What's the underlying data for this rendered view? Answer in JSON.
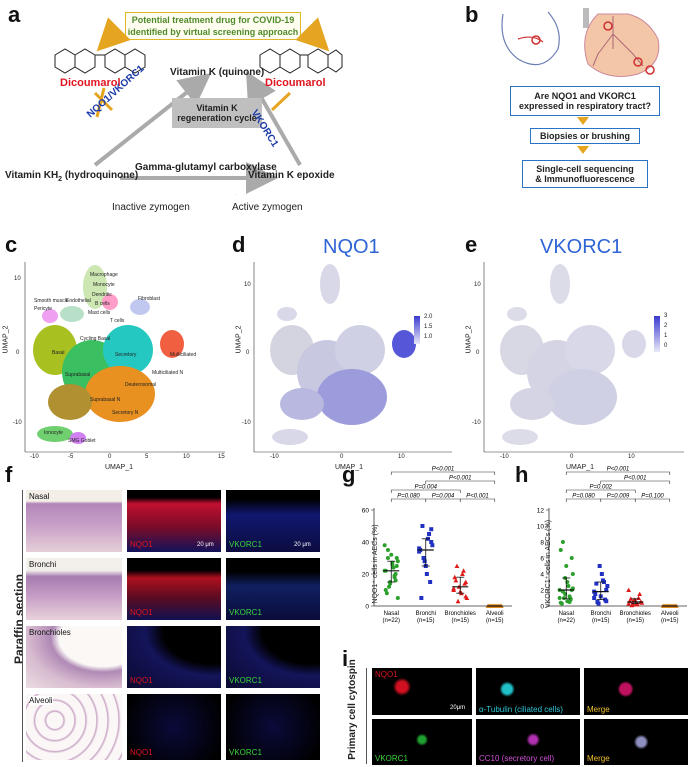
{
  "panel_labels": {
    "a": "a",
    "b": "b",
    "c": "c",
    "d": "d",
    "e": "e",
    "f": "f",
    "g": "g",
    "h": "h",
    "i": "i"
  },
  "panel_a": {
    "banner_line1": "Potential treatment drug for COVID-19",
    "banner_line2": "identified by virtual screening approach",
    "dicoumarol_left": "Dicoumarol",
    "dicoumarol_right": "Dicoumarol",
    "vk_quinone": "Vitamin K (quinone)",
    "cycle_line1": "Vitamin K",
    "cycle_line2": "regeneration cycle",
    "nqo1_vkorc1": "NQO1/VKORC1",
    "vkorc1": "VKORC1",
    "vk_hydroquinone_a": "Vitamin KH",
    "vk_hydroquinone_sub": "2",
    "vk_hydroquinone_b": " (hydroquinone)",
    "carboxylase": "Gamma-glutamyl carboxylase",
    "vk_epoxide": "Vitamin K epoxide",
    "inactive": "Inactive zymogen",
    "active": "Active zymogen"
  },
  "panel_b": {
    "q1": "Are NQO1 and VKORC1",
    "q2": "expressed in respiratory tract?",
    "step2": "Biopsies or brushing",
    "step3a": "Single-cell sequencing",
    "step3b": "& Immunofluorescence"
  },
  "panel_c": {
    "xlabel": "UMAP_1",
    "ylabel": "UMAP_2",
    "xticks": [
      "-10",
      "-5",
      "0",
      "5",
      "10",
      "15"
    ],
    "yticks": [
      "10",
      "0",
      "-10"
    ],
    "clusters": [
      "Macrophage",
      "Monocyte",
      "Dendritic",
      "B cells",
      "Fibroblast",
      "Smooth muscle",
      "Endothelial",
      "Pericyte",
      "Mast cells",
      "T cells",
      "Basal",
      "Cycling Basal",
      "Secretory",
      "Multiciliated",
      "Suprabasal",
      "Deuterosomal",
      "Multiciliated N",
      "Suprabasal N",
      "Secretory N",
      "Ionocyte",
      "SMG Goblet"
    ]
  },
  "panel_d": {
    "title": "NQO1",
    "xlabel": "UMAP_1",
    "ylabel": "UMAP_2",
    "xticks": [
      "-10",
      "0",
      "10"
    ],
    "yticks": [
      "10",
      "0",
      "-10"
    ],
    "scale": [
      "2.0",
      "1.5",
      "1.0"
    ]
  },
  "panel_e": {
    "title": "VKORC1",
    "xlabel": "UMAP_1",
    "ylabel": "UMAP_2",
    "xticks": [
      "-10",
      "0",
      "10"
    ],
    "yticks": [
      "10",
      "0",
      "-10"
    ],
    "scale": [
      "3",
      "2",
      "1",
      "0"
    ]
  },
  "panel_f": {
    "side_label": "Paraffin section",
    "rows": [
      {
        "name": "Nasal",
        "nqo1": "NQO1",
        "vkorc1": "VKORC1"
      },
      {
        "name": "Bronchi",
        "nqo1": "NQO1",
        "vkorc1": "VKORC1"
      },
      {
        "name": "Bronchioles",
        "nqo1": "NQO1",
        "vkorc1": "VKORC1"
      },
      {
        "name": "Alveoli",
        "nqo1": "NQO1",
        "vkorc1": "VKORC1"
      }
    ],
    "scale_bar": "20 μm"
  },
  "panel_g": {
    "ylabel": "NQO1⁺ cells in AECs (%)",
    "yticks": [
      "60",
      "40",
      "20",
      "0"
    ],
    "groups": [
      "Nasal",
      "Bronchi",
      "Bronchioles",
      "Alveoli"
    ],
    "ns": [
      "(n=22)",
      "(n=15)",
      "(n=15)",
      "(n=15)"
    ],
    "pvals": [
      "P<0.001",
      "P<0.001",
      "P=0.004",
      "P=0.080",
      "P=0.004",
      "P<0.001"
    ]
  },
  "panel_h": {
    "ylabel": "VKORC1⁺ cells in AECs (%)",
    "yticks": [
      "12",
      "10",
      "8",
      "6",
      "4",
      "2",
      "0"
    ],
    "groups": [
      "Nasal",
      "Bronchi",
      "Bronchioles",
      "Alveoli"
    ],
    "ns": [
      "(n=22)",
      "(n=15)",
      "(n=15)",
      "(n=15)"
    ],
    "pvals": [
      "P<0.001",
      "P<0.001",
      "P=0.002",
      "P=0.080",
      "P=0.009",
      "P=0.100"
    ]
  },
  "panel_i": {
    "side_label": "Primary cell cytospin",
    "nqo1": "NQO1",
    "tubulin": "α-Tubulin (ciliated cells)",
    "merge1": "Merge",
    "vkorc1": "VKORC1",
    "cc10": "CC10 (secretory cell)",
    "merge2": "Merge",
    "scale": "20μm"
  },
  "chart_data": [
    {
      "type": "scatter",
      "title": "",
      "ylabel": "NQO1⁺ cells in AECs (%)",
      "categories": [
        "Nasal",
        "Bronchi",
        "Bronchioles",
        "Alveoli"
      ],
      "ylim": [
        0,
        60
      ],
      "series": [
        {
          "values": [
            22,
            30,
            18,
            26,
            15,
            35,
            10,
            28,
            20,
            24,
            32,
            12,
            8,
            38,
            25,
            19,
            27,
            14,
            30,
            22,
            5,
            16
          ]
        },
        {
          "values": [
            34,
            40,
            45,
            20,
            28,
            50,
            35,
            38,
            15,
            42,
            25,
            30,
            5,
            36,
            48
          ]
        },
        {
          "values": [
            10,
            15,
            22,
            8,
            12,
            25,
            18,
            5,
            14,
            20,
            9,
            3,
            16,
            11,
            6
          ]
        },
        {
          "values": [
            0,
            0,
            0,
            0,
            0,
            0,
            0,
            0,
            0,
            0,
            0,
            0,
            0,
            0,
            0
          ]
        }
      ]
    },
    {
      "type": "scatter",
      "title": "",
      "ylabel": "VKORC1⁺ cells in AECs (%)",
      "categories": [
        "Nasal",
        "Bronchi",
        "Bronchioles",
        "Alveoli"
      ],
      "ylim": [
        0,
        12
      ],
      "series": [
        {
          "values": [
            1,
            2,
            0.5,
            3,
            1.5,
            8,
            7,
            4,
            0.8,
            2.5,
            5,
            1,
            0.3,
            2,
            6,
            1.2,
            0.6,
            3.5,
            1.8,
            0.4,
            2.2,
            0.9
          ]
        },
        {
          "values": [
            1,
            2,
            3,
            4,
            5,
            0.5,
            1.5,
            2.5,
            0.8,
            3.2,
            1.2,
            0.3,
            2.8,
            1.8,
            0.6
          ]
        },
        {
          "values": [
            0.3,
            0.5,
            1,
            0.2,
            0.8,
            0.1,
            0.6,
            0.4,
            1.5,
            0.2,
            0.7,
            0.3,
            0.9,
            2,
            0.5
          ]
        },
        {
          "values": [
            0,
            0,
            0,
            0,
            0,
            0,
            0,
            0,
            0,
            0,
            0,
            0,
            0,
            0,
            0
          ]
        }
      ]
    }
  ]
}
